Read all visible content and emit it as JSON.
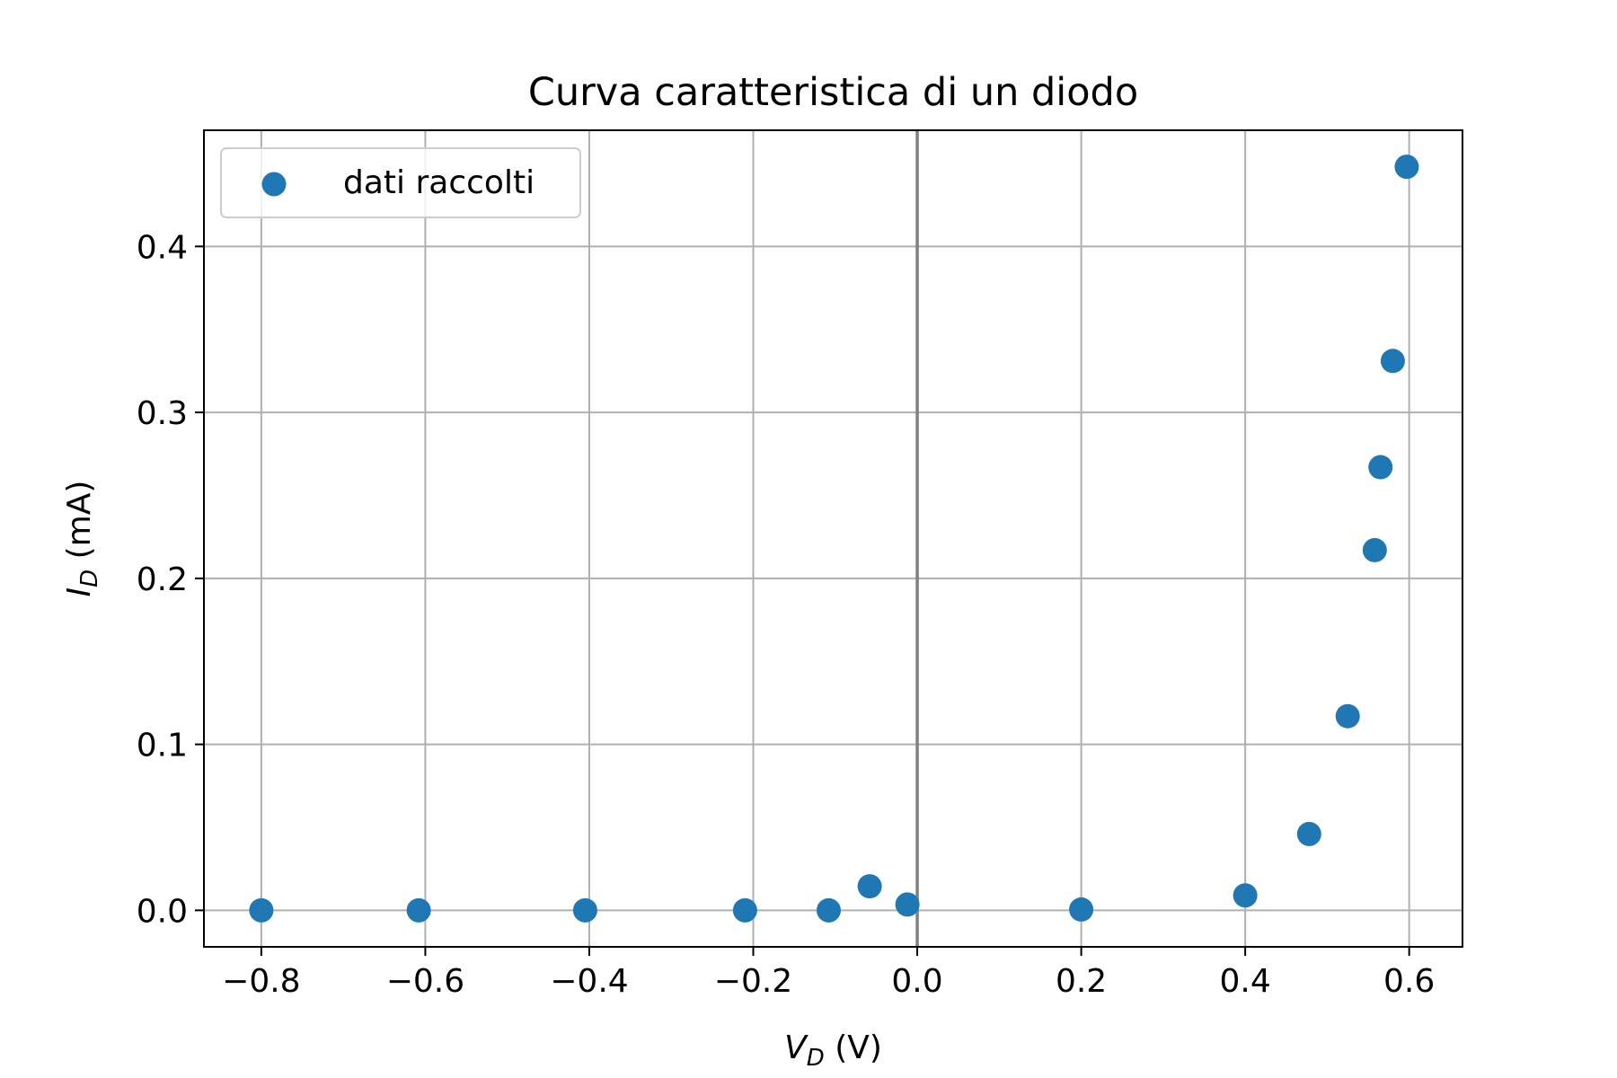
{
  "chart_data": {
    "type": "scatter",
    "title": "Curva caratteristica di un diodo",
    "xlabel": {
      "main": "V",
      "sub": "D",
      "unit": " (V)"
    },
    "ylabel": {
      "main": "I",
      "sub": "D",
      "unit": " (mA)"
    },
    "xlim": [
      -0.87,
      0.665
    ],
    "ylim": [
      -0.022,
      0.47
    ],
    "xticks": [
      -0.8,
      -0.6,
      -0.4,
      -0.2,
      0.0,
      0.2,
      0.4,
      0.6
    ],
    "xtick_labels": [
      "−0.8",
      "−0.6",
      "−0.4",
      "−0.2",
      "0.0",
      "0.2",
      "0.4",
      "0.6"
    ],
    "yticks": [
      0.0,
      0.1,
      0.2,
      0.3,
      0.4
    ],
    "ytick_labels": [
      "0.0",
      "0.1",
      "0.2",
      "0.3",
      "0.4"
    ],
    "grid": true,
    "vertical_line_x": 0.0,
    "legend_position": "upper-left",
    "color": "#1f77b4",
    "series": [
      {
        "name": "dati raccolti",
        "x": [
          -0.8,
          -0.608,
          -0.405,
          -0.21,
          -0.108,
          -0.058,
          -0.012,
          0.2,
          0.4,
          0.478,
          0.525,
          0.558,
          0.565,
          0.58,
          0.597
        ],
        "y": [
          0.0,
          0.0,
          0.0,
          0.0,
          0.0,
          0.0145,
          0.0035,
          0.0005,
          0.009,
          0.046,
          0.117,
          0.217,
          0.267,
          0.331,
          0.448
        ]
      }
    ]
  }
}
